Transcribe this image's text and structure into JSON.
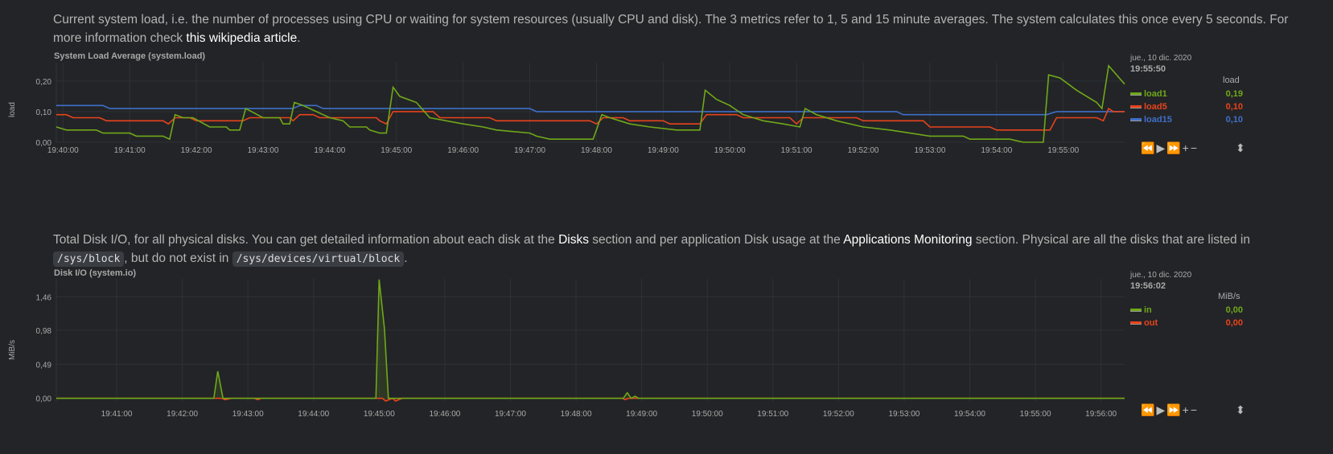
{
  "load_section": {
    "desc_text": "Current system load, i.e. the number of processes using CPU or waiting for system resources (usually CPU and disk). The 3 metrics refer to 1, 5 and 15 minute averages. The system calculates this once every 5 seconds. For more information check ",
    "desc_link": "this wikipedia article",
    "desc_end": ".",
    "title": "System Load Average (system.load)",
    "ylabel": "load",
    "date": "jue., 10 dic. 2020",
    "time": "19:55:50",
    "units": "load",
    "legend": [
      {
        "name": "load1",
        "value": "0,19",
        "color": "#6fa81a"
      },
      {
        "name": "load5",
        "value": "0,10",
        "color": "#e8431c"
      },
      {
        "name": "load15",
        "value": "0,10",
        "color": "#3e6fc9"
      }
    ]
  },
  "io_section": {
    "desc_a": "Total Disk I/O, for all physical disks. You can get detailed information about each disk at the ",
    "link1": "Disks",
    "desc_b": " section and per application Disk usage at the ",
    "link2": "Applications Monitoring",
    "desc_c": " section. Physical are all the disks that are listed in ",
    "code1": "/sys/block",
    "desc_d": ", but do not exist in ",
    "code2": "/sys/devices/virtual/block",
    "desc_e": ".",
    "title": "Disk I/O (system.io)",
    "ylabel": "MiB/s",
    "date": "jue., 10 dic. 2020",
    "time": "19:56:02",
    "units": "MiB/s",
    "legend": [
      {
        "name": "in",
        "value": "0,00",
        "color": "#6fa81a"
      },
      {
        "name": "out",
        "value": "0,00",
        "color": "#e8431c"
      }
    ]
  },
  "controls": {
    "rewind": "⏪",
    "play": "▶",
    "forward": "⏩",
    "zoom_in": "+",
    "zoom_out": "−",
    "resize": "⬍"
  },
  "chart_data": [
    {
      "type": "line",
      "title": "System Load Average (system.load)",
      "ylabel": "load",
      "xunit": "minutes after 19:40:00",
      "xlim": [
        -0.1,
        15.92
      ],
      "ylim": [
        0,
        0.26
      ],
      "yticks": [
        "0,00",
        "0,10",
        "0,20"
      ],
      "ytick_values": [
        0,
        0.1,
        0.2
      ],
      "xticks": [
        "19:40:00",
        "19:41:00",
        "19:42:00",
        "19:43:00",
        "19:44:00",
        "19:45:00",
        "19:46:00",
        "19:47:00",
        "19:48:00",
        "19:49:00",
        "19:50:00",
        "19:51:00",
        "19:52:00",
        "19:53:00",
        "19:54:00",
        "19:55:00"
      ],
      "xtick_values": [
        0,
        1,
        2,
        3,
        4,
        5,
        6,
        7,
        8,
        9,
        10,
        11,
        12,
        13,
        14,
        15
      ],
      "series": [
        {
          "name": "load15",
          "color": "#3e6fc9",
          "points": [
            [
              -0.1,
              0.12
            ],
            [
              0.6,
              0.12
            ],
            [
              0.7,
              0.11
            ],
            [
              3.45,
              0.11
            ],
            [
              3.55,
              0.12
            ],
            [
              3.8,
              0.12
            ],
            [
              3.9,
              0.11
            ],
            [
              7.0,
              0.11
            ],
            [
              7.1,
              0.1
            ],
            [
              12.5,
              0.1
            ],
            [
              12.6,
              0.09
            ],
            [
              14.75,
              0.09
            ],
            [
              14.9,
              0.1
            ],
            [
              15.92,
              0.1
            ]
          ]
        },
        {
          "name": "load5",
          "color": "#e8431c",
          "points": [
            [
              -0.1,
              0.09
            ],
            [
              0.05,
              0.09
            ],
            [
              0.15,
              0.08
            ],
            [
              0.55,
              0.08
            ],
            [
              0.65,
              0.07
            ],
            [
              1.5,
              0.07
            ],
            [
              1.58,
              0.06
            ],
            [
              1.68,
              0.08
            ],
            [
              1.9,
              0.08
            ],
            [
              2.0,
              0.07
            ],
            [
              2.7,
              0.07
            ],
            [
              2.8,
              0.08
            ],
            [
              3.4,
              0.08
            ],
            [
              3.45,
              0.07
            ],
            [
              3.55,
              0.09
            ],
            [
              3.75,
              0.09
            ],
            [
              3.85,
              0.08
            ],
            [
              4.7,
              0.08
            ],
            [
              4.75,
              0.07
            ],
            [
              4.85,
              0.06
            ],
            [
              4.95,
              0.1
            ],
            [
              5.55,
              0.1
            ],
            [
              5.65,
              0.08
            ],
            [
              6.4,
              0.08
            ],
            [
              6.5,
              0.07
            ],
            [
              7.9,
              0.07
            ],
            [
              8.0,
              0.06
            ],
            [
              8.1,
              0.08
            ],
            [
              8.4,
              0.08
            ],
            [
              8.5,
              0.07
            ],
            [
              9.0,
              0.07
            ],
            [
              9.1,
              0.06
            ],
            [
              9.55,
              0.06
            ],
            [
              9.65,
              0.09
            ],
            [
              10.1,
              0.09
            ],
            [
              10.2,
              0.08
            ],
            [
              10.9,
              0.08
            ],
            [
              11.0,
              0.06
            ],
            [
              11.1,
              0.08
            ],
            [
              11.9,
              0.08
            ],
            [
              12.0,
              0.07
            ],
            [
              12.9,
              0.07
            ],
            [
              13.0,
              0.05
            ],
            [
              13.9,
              0.05
            ],
            [
              14.0,
              0.04
            ],
            [
              14.8,
              0.04
            ],
            [
              14.9,
              0.08
            ],
            [
              15.5,
              0.08
            ],
            [
              15.6,
              0.07
            ],
            [
              15.68,
              0.11
            ],
            [
              15.75,
              0.1
            ],
            [
              15.92,
              0.1
            ]
          ]
        },
        {
          "name": "load1",
          "color": "#6fa81a",
          "points": [
            [
              -0.1,
              0.05
            ],
            [
              0.05,
              0.04
            ],
            [
              0.5,
              0.04
            ],
            [
              0.6,
              0.03
            ],
            [
              1.0,
              0.03
            ],
            [
              1.1,
              0.02
            ],
            [
              1.5,
              0.02
            ],
            [
              1.6,
              0.01
            ],
            [
              1.6,
              0.01
            ],
            [
              1.68,
              0.09
            ],
            [
              1.8,
              0.08
            ],
            [
              1.95,
              0.08
            ],
            [
              2.2,
              0.05
            ],
            [
              2.45,
              0.05
            ],
            [
              2.5,
              0.04
            ],
            [
              2.65,
              0.04
            ],
            [
              2.74,
              0.11
            ],
            [
              3.0,
              0.08
            ],
            [
              3.25,
              0.08
            ],
            [
              3.3,
              0.06
            ],
            [
              3.4,
              0.06
            ],
            [
              3.47,
              0.13
            ],
            [
              3.6,
              0.12
            ],
            [
              4.0,
              0.08
            ],
            [
              4.2,
              0.07
            ],
            [
              4.3,
              0.05
            ],
            [
              4.55,
              0.05
            ],
            [
              4.6,
              0.04
            ],
            [
              4.75,
              0.03
            ],
            [
              4.85,
              0.03
            ],
            [
              4.95,
              0.18
            ],
            [
              5.05,
              0.15
            ],
            [
              5.3,
              0.13
            ],
            [
              5.5,
              0.08
            ],
            [
              6.0,
              0.06
            ],
            [
              6.3,
              0.05
            ],
            [
              6.5,
              0.04
            ],
            [
              7.0,
              0.03
            ],
            [
              7.1,
              0.02
            ],
            [
              7.3,
              0.01
            ],
            [
              7.95,
              0.01
            ],
            [
              8.08,
              0.09
            ],
            [
              8.2,
              0.08
            ],
            [
              8.5,
              0.06
            ],
            [
              8.8,
              0.05
            ],
            [
              9.2,
              0.04
            ],
            [
              9.55,
              0.04
            ],
            [
              9.63,
              0.17
            ],
            [
              9.8,
              0.14
            ],
            [
              10.0,
              0.12
            ],
            [
              10.2,
              0.09
            ],
            [
              10.5,
              0.07
            ],
            [
              10.8,
              0.06
            ],
            [
              11.05,
              0.05
            ],
            [
              11.13,
              0.11
            ],
            [
              11.3,
              0.09
            ],
            [
              11.6,
              0.07
            ],
            [
              12.0,
              0.05
            ],
            [
              12.4,
              0.04
            ],
            [
              12.7,
              0.03
            ],
            [
              13.0,
              0.02
            ],
            [
              13.5,
              0.02
            ],
            [
              13.6,
              0.01
            ],
            [
              14.2,
              0.01
            ],
            [
              14.4,
              0.0
            ],
            [
              14.7,
              0.0
            ],
            [
              14.78,
              0.22
            ],
            [
              14.95,
              0.21
            ],
            [
              15.2,
              0.17
            ],
            [
              15.5,
              0.13
            ],
            [
              15.58,
              0.11
            ],
            [
              15.68,
              0.25
            ],
            [
              15.92,
              0.19
            ]
          ]
        }
      ]
    },
    {
      "type": "line",
      "title": "Disk I/O (system.io)",
      "ylabel": "MiB/s",
      "xunit": "minutes after 19:41:00",
      "xlim": [
        -0.92,
        15.36
      ],
      "ylim": [
        -0.05,
        1.72
      ],
      "yticks": [
        "0,00",
        "0,49",
        "0,98",
        "1,46"
      ],
      "ytick_values": [
        0,
        0.49,
        0.98,
        1.46
      ],
      "xticks": [
        "19:41:00",
        "19:42:00",
        "19:43:00",
        "19:44:00",
        "19:45:00",
        "19:46:00",
        "19:47:00",
        "19:48:00",
        "19:49:00",
        "19:50:00",
        "19:51:00",
        "19:52:00",
        "19:53:00",
        "19:54:00",
        "19:55:00",
        "19:56:00"
      ],
      "xtick_values": [
        0,
        1,
        2,
        3,
        4,
        5,
        6,
        7,
        8,
        9,
        10,
        11,
        12,
        13,
        14,
        15
      ],
      "series": [
        {
          "name": "out",
          "color": "#e8431c",
          "points": [
            [
              -0.92,
              0
            ],
            [
              1.6,
              0
            ],
            [
              1.65,
              -0.02
            ],
            [
              1.75,
              0
            ],
            [
              2.1,
              0
            ],
            [
              2.15,
              -0.02
            ],
            [
              2.2,
              0
            ],
            [
              4.05,
              0
            ],
            [
              4.1,
              -0.04
            ],
            [
              4.2,
              0
            ],
            [
              4.25,
              -0.04
            ],
            [
              4.35,
              0
            ],
            [
              7.7,
              0
            ],
            [
              7.75,
              -0.02
            ],
            [
              7.8,
              0
            ],
            [
              15.36,
              0
            ]
          ]
        },
        {
          "name": "in",
          "color": "#6fa81a",
          "points": [
            [
              -0.92,
              0
            ],
            [
              1.48,
              0
            ],
            [
              1.54,
              0.39
            ],
            [
              1.62,
              0
            ],
            [
              3.95,
              0
            ],
            [
              4.0,
              1.71
            ],
            [
              4.08,
              1.0
            ],
            [
              4.14,
              0
            ],
            [
              7.72,
              0
            ],
            [
              7.78,
              0.08
            ],
            [
              7.84,
              0
            ],
            [
              7.9,
              0.03
            ],
            [
              7.95,
              0
            ],
            [
              15.36,
              0
            ]
          ]
        }
      ]
    }
  ]
}
